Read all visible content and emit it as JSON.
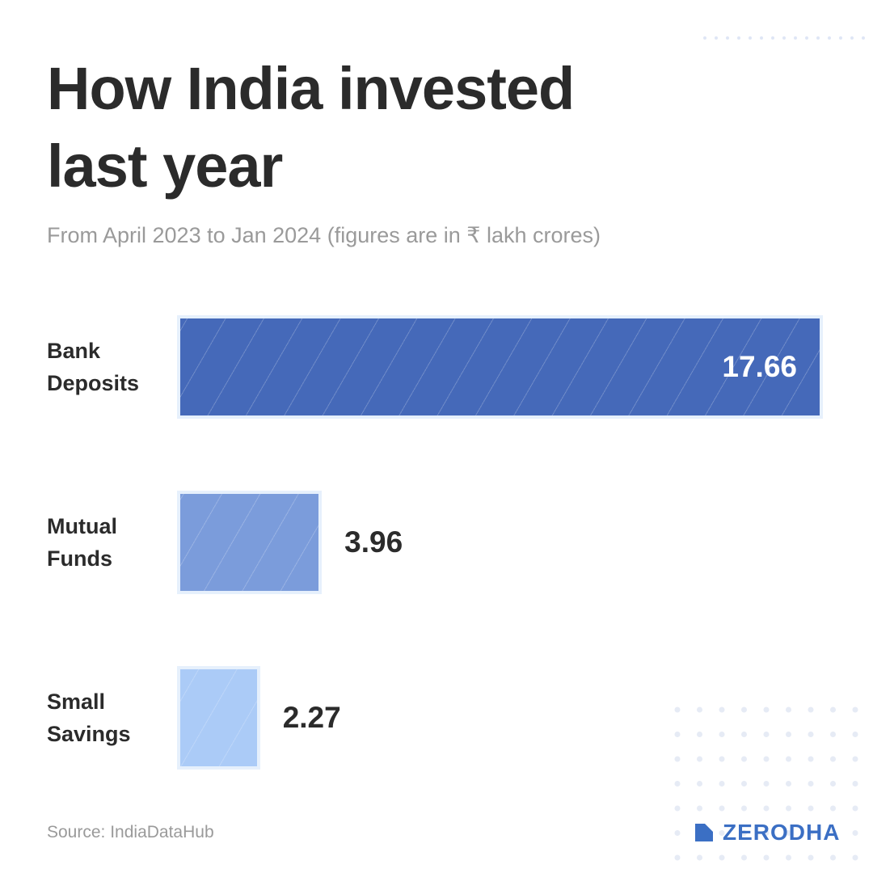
{
  "chart_data": {
    "type": "bar",
    "orientation": "horizontal",
    "title": "How India invested last year",
    "subtitle": "From April 2023 to Jan 2024 (figures are in ₹ lakh crores)",
    "categories": [
      "Bank Deposits",
      "Mutual Funds",
      "Small Savings"
    ],
    "values": [
      17.66,
      3.96,
      2.27
    ],
    "colors": [
      "#4569b9",
      "#7b9cdb",
      "#abcbf7"
    ],
    "source": "Source: IndiaDataHub",
    "brand": "ZERODHA"
  }
}
